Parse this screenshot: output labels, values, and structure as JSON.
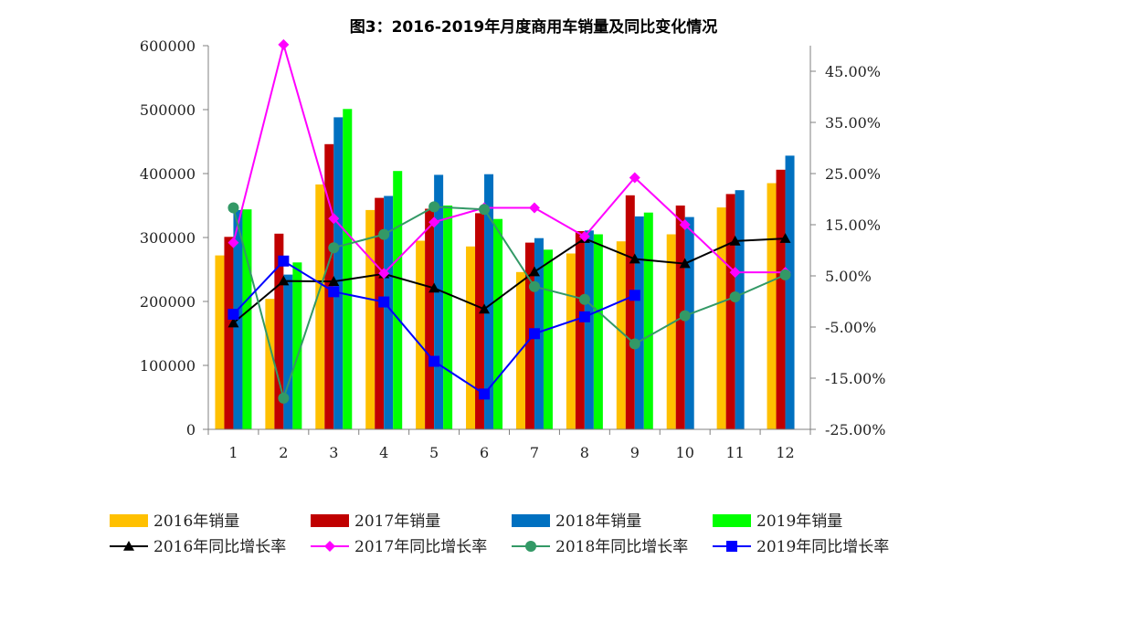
{
  "chart_data": {
    "type": "bar",
    "title": "图3：2016-2019年月度商用车销量及同比变化情况",
    "categories": [
      "1",
      "2",
      "3",
      "4",
      "5",
      "6",
      "7",
      "8",
      "9",
      "10",
      "11",
      "12"
    ],
    "ylim": [
      0,
      600000
    ],
    "y_ticks": [
      "0",
      "100000",
      "200000",
      "300000",
      "400000",
      "500000",
      "600000"
    ],
    "y2lim": [
      -0.25,
      0.5
    ],
    "y2_ticks": [
      "-25.00%",
      "-15.00%",
      "-5.00%",
      "5.00%",
      "15.00%",
      "25.00%",
      "35.00%",
      "45.00%"
    ],
    "bar_series": [
      {
        "name": "2016年销量",
        "color": "#FFC000",
        "values": [
          272000,
          204000,
          383000,
          343000,
          295000,
          286000,
          246000,
          275000,
          294000,
          305000,
          347000,
          385000
        ]
      },
      {
        "name": "2017年销量",
        "color": "#C00000",
        "values": [
          301000,
          306000,
          446000,
          362000,
          345000,
          338000,
          292000,
          310000,
          366000,
          350000,
          368000,
          406000
        ]
      },
      {
        "name": "2018年销量",
        "color": "#0070C0",
        "values": [
          343000,
          242000,
          488000,
          365000,
          398000,
          399000,
          299000,
          311000,
          333000,
          332000,
          374000,
          428000
        ]
      },
      {
        "name": "2019年销量",
        "color": "#00FF00",
        "values": [
          344000,
          261000,
          501000,
          404000,
          350000,
          329000,
          281000,
          305000,
          339000,
          null,
          null,
          null
        ]
      }
    ],
    "line_series": [
      {
        "name": "2016年同比增长率",
        "color": "#000000",
        "marker": "triangle",
        "values": [
          -0.042,
          0.04,
          0.039,
          0.054,
          0.026,
          -0.015,
          0.058,
          0.123,
          0.083,
          0.074,
          0.118,
          0.123
        ]
      },
      {
        "name": "2017年同比增长率",
        "color": "#FF00FF",
        "marker": "diamond",
        "values": [
          0.115,
          0.502,
          0.162,
          0.055,
          0.155,
          0.183,
          0.183,
          0.127,
          0.242,
          0.15,
          0.057,
          0.057
        ]
      },
      {
        "name": "2018年同比增长率",
        "color": "#339966",
        "marker": "circle",
        "values": [
          0.183,
          -0.189,
          0.105,
          0.131,
          0.185,
          0.18,
          0.029,
          0.004,
          -0.083,
          -0.028,
          0.009,
          0.052
        ]
      },
      {
        "name": "2019年同比增长率",
        "color": "#0000FF",
        "marker": "square",
        "values": [
          -0.025,
          0.079,
          0.019,
          -0.001,
          -0.117,
          -0.181,
          -0.063,
          -0.03,
          0.012,
          null,
          null,
          null
        ]
      }
    ]
  }
}
